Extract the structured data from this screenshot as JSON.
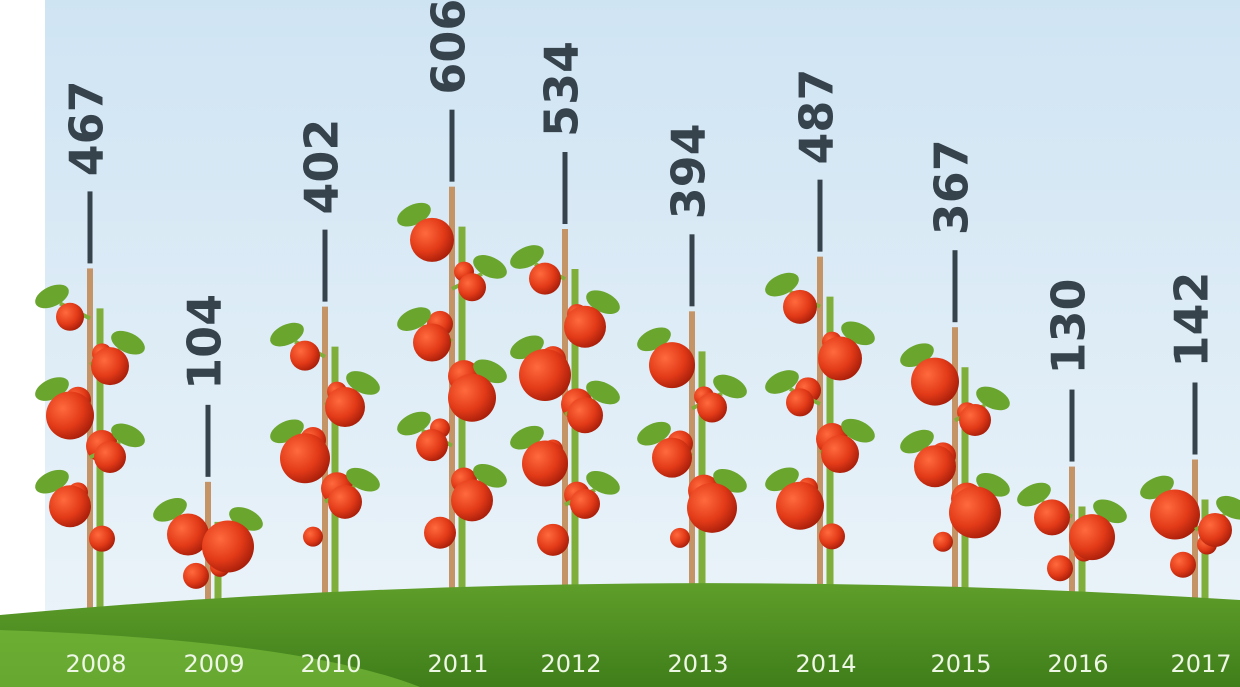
{
  "chart_data": {
    "type": "bar",
    "categories": [
      "2008",
      "2009",
      "2010",
      "2011",
      "2012",
      "2013",
      "2014",
      "2015",
      "2016",
      "2017"
    ],
    "values": [
      467,
      104,
      402,
      606,
      534,
      394,
      487,
      367,
      130,
      142
    ],
    "color": "#c49466"
  }
}
